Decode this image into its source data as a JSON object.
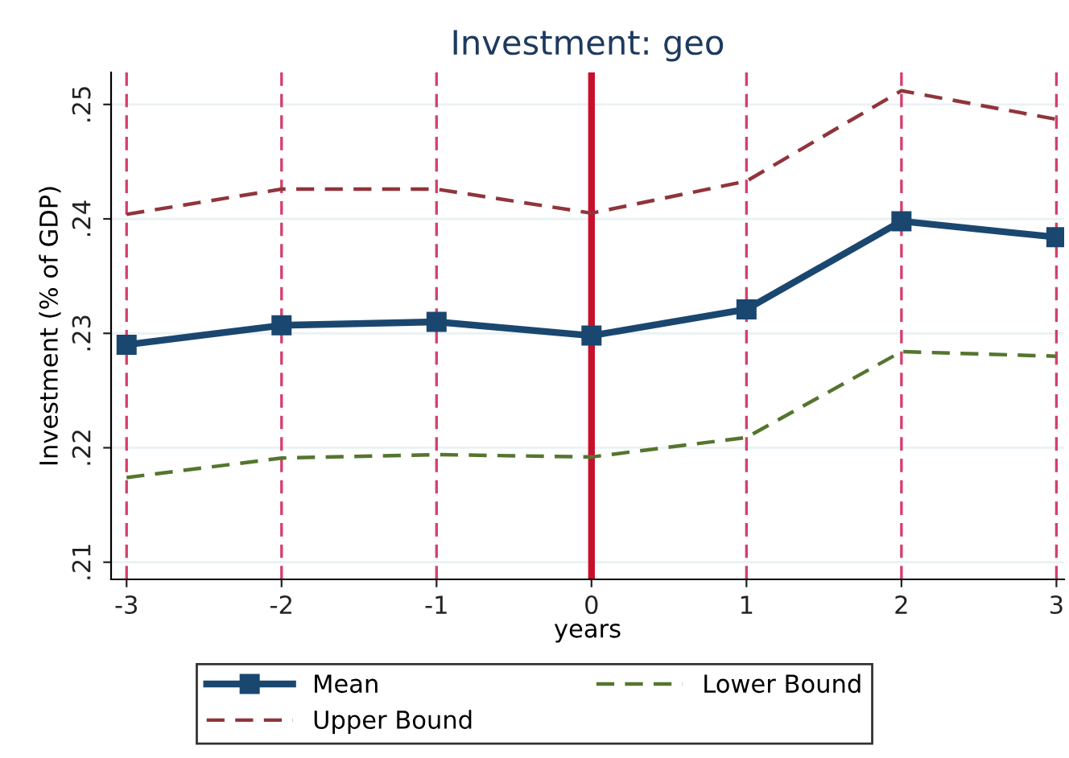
{
  "chart_data": {
    "type": "line",
    "title": "Investment: geo",
    "xlabel": "years",
    "ylabel": "Investment (% of GDP)",
    "x": [
      -3,
      -2,
      -1,
      0,
      1,
      2,
      3
    ],
    "series": [
      {
        "name": "Mean",
        "color": "#1a476f",
        "values": [
          0.229,
          0.2307,
          0.231,
          0.2298,
          0.2321,
          0.2398,
          0.2384
        ],
        "marker": "square",
        "line_style": "solid"
      },
      {
        "name": "Upper Bound",
        "color": "#90353b",
        "values": [
          0.2404,
          0.2426,
          0.2426,
          0.2405,
          0.2433,
          0.2512,
          0.2487
        ],
        "marker": "none",
        "line_style": "dashed"
      },
      {
        "name": "Lower Bound",
        "color": "#55752f",
        "values": [
          0.2174,
          0.2191,
          0.2194,
          0.2192,
          0.2209,
          0.2284,
          0.228
        ],
        "marker": "none",
        "line_style": "dashed"
      }
    ],
    "xlim": [
      -3.1,
      3.05
    ],
    "ylim": [
      0.2085,
      0.2528
    ],
    "xticks": [
      -3,
      -2,
      -1,
      0,
      1,
      2,
      3
    ],
    "yticks": [
      {
        "value": 0.21,
        "label": ".21"
      },
      {
        "value": 0.22,
        "label": ".22"
      },
      {
        "value": 0.23,
        "label": ".23"
      },
      {
        "value": 0.24,
        "label": ".24"
      },
      {
        "value": 0.25,
        "label": ".25"
      }
    ],
    "ref_lines": [
      {
        "axis": "x",
        "value": -3,
        "color": "#d5406b",
        "line_style": "dashed"
      },
      {
        "axis": "x",
        "value": -2,
        "color": "#d5406b",
        "line_style": "dashed"
      },
      {
        "axis": "x",
        "value": -1,
        "color": "#d5406b",
        "line_style": "dashed"
      },
      {
        "axis": "x",
        "value": 0,
        "color": "#c8102e",
        "line_style": "solid"
      },
      {
        "axis": "x",
        "value": 1,
        "color": "#d5406b",
        "line_style": "dashed"
      },
      {
        "axis": "x",
        "value": 2,
        "color": "#d5406b",
        "line_style": "dashed"
      },
      {
        "axis": "x",
        "value": 3,
        "color": "#d5406b",
        "line_style": "dashed"
      }
    ],
    "grid": "y",
    "legend": "bottom"
  }
}
